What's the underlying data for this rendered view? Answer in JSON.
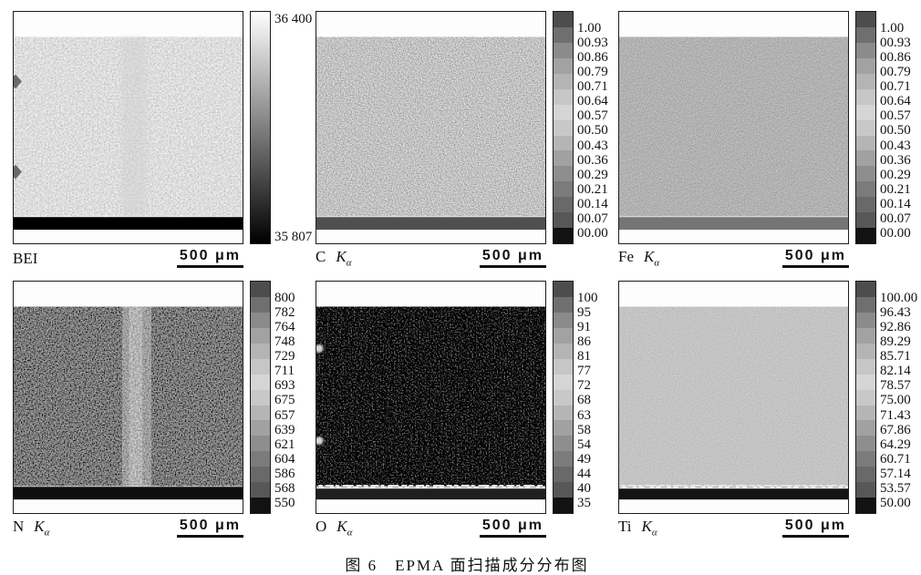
{
  "caption": "图 6　EPMA 面扫描成分分布图",
  "scale_bar_label": "500 μm",
  "colorbar_ramp": [
    "#4d4d4d",
    "#6f6f6f",
    "#8b8b8b",
    "#a2a2a2",
    "#b4b4b4",
    "#c6c6c6",
    "#d5d5d5",
    "#c8c8c8",
    "#b5b5b5",
    "#a1a1a1",
    "#8e8e8e",
    "#7b7b7b",
    "#696969",
    "#575757",
    "#121212"
  ],
  "continuous_gradient": [
    "#ffffff",
    "#000000"
  ],
  "panels": [
    {
      "id": "bei",
      "element": "BEI",
      "suffix_main": "",
      "suffix_sub": "",
      "colorbar": {
        "style": "continuous",
        "ticks": [
          "36 400",
          "35 807"
        ]
      }
    },
    {
      "id": "c",
      "element": "C",
      "suffix_main": "K",
      "suffix_sub": "α",
      "colorbar": {
        "style": "stepped",
        "ticks": [
          "1.00",
          "00.93",
          "00.86",
          "00.79",
          "00.71",
          "00.64",
          "00.57",
          "00.50",
          "00.43",
          "00.36",
          "00.29",
          "00.21",
          "00.14",
          "00.07",
          "00.00"
        ]
      }
    },
    {
      "id": "fe",
      "element": "Fe",
      "suffix_main": "K",
      "suffix_sub": "α",
      "colorbar": {
        "style": "stepped",
        "ticks": [
          "1.00",
          "00.93",
          "00.86",
          "00.79",
          "00.71",
          "00.64",
          "00.57",
          "00.50",
          "00.43",
          "00.36",
          "00.29",
          "00.21",
          "00.14",
          "00.07",
          "00.00"
        ]
      }
    },
    {
      "id": "n",
      "element": "N",
      "suffix_main": "K",
      "suffix_sub": "α",
      "colorbar": {
        "style": "stepped",
        "ticks": [
          "800",
          "782",
          "764",
          "748",
          "729",
          "711",
          "693",
          "675",
          "657",
          "639",
          "621",
          "604",
          "586",
          "568",
          "550"
        ]
      }
    },
    {
      "id": "o",
      "element": "O",
      "suffix_main": "K",
      "suffix_sub": "α",
      "colorbar": {
        "style": "stepped",
        "ticks": [
          "100",
          "95",
          "91",
          "86",
          "81",
          "77",
          "72",
          "68",
          "63",
          "58",
          "54",
          "49",
          "44",
          "40",
          "35"
        ]
      }
    },
    {
      "id": "ti",
      "element": "Ti",
      "suffix_main": "K",
      "suffix_sub": "α",
      "colorbar": {
        "style": "stepped",
        "ticks": [
          "100.00",
          "96.43",
          "92.86",
          "89.29",
          "85.71",
          "82.14",
          "78.57",
          "75.00",
          "71.43",
          "67.86",
          "64.29",
          "60.71",
          "57.14",
          "53.57",
          "50.00"
        ]
      }
    }
  ]
}
